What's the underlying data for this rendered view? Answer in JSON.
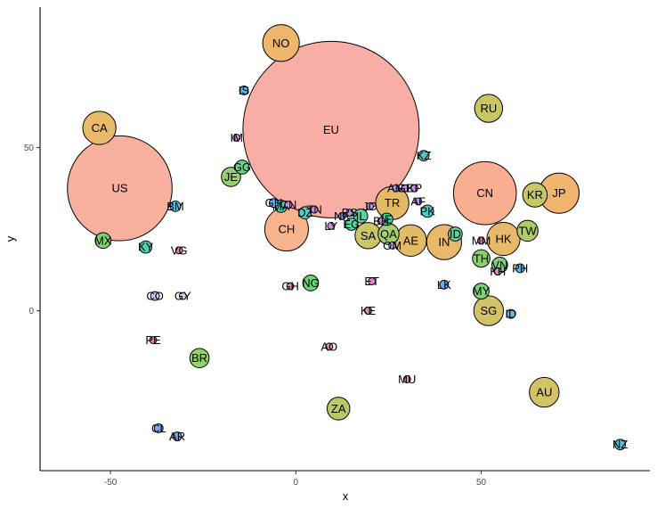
{
  "chart_data": {
    "type": "scatter",
    "title": "",
    "xlabel": "x",
    "ylabel": "y",
    "xlim": [
      -69.0,
      95.5
    ],
    "ylim": [
      -49.0,
      93.0
    ],
    "xticks": [
      -50,
      0,
      50
    ],
    "yticks": [
      0,
      50
    ],
    "grid": false,
    "legend": "none",
    "points": [
      {
        "label": "EU",
        "x": 9.5,
        "y": 55.5,
        "size": 100,
        "color": "#f9aea5"
      },
      {
        "label": "US",
        "x": -47.5,
        "y": 37.5,
        "size": 59,
        "color": "#f8b09f"
      },
      {
        "label": "CN",
        "x": 51.0,
        "y": 36.0,
        "size": 35,
        "color": "#f8ae8f"
      },
      {
        "label": "JP",
        "x": 71.0,
        "y": 36.0,
        "size": 22,
        "color": "#f1b56f"
      },
      {
        "label": "CH",
        "x": -2.5,
        "y": 25.0,
        "size": 24,
        "color": "#f6b38c"
      },
      {
        "label": "NO",
        "x": -4.0,
        "y": 82.0,
        "size": 20,
        "color": "#efb66e"
      },
      {
        "label": "CA",
        "x": -53.0,
        "y": 56.0,
        "size": 18,
        "color": "#e8ba69"
      },
      {
        "label": "RU",
        "x": 52.0,
        "y": 62.0,
        "size": 15,
        "color": "#c9c665"
      },
      {
        "label": "TR",
        "x": 26.0,
        "y": 33.0,
        "size": 18,
        "color": "#e3bb68"
      },
      {
        "label": "AE",
        "x": 31.0,
        "y": 21.5,
        "size": 17,
        "color": "#e0bc68"
      },
      {
        "label": "IN",
        "x": 40.0,
        "y": 21.0,
        "size": 19,
        "color": "#e8b96b"
      },
      {
        "label": "HK",
        "x": 56.0,
        "y": 22.0,
        "size": 18,
        "color": "#e6ba6a"
      },
      {
        "label": "KR",
        "x": 64.5,
        "y": 35.5,
        "size": 13,
        "color": "#c6c766"
      },
      {
        "label": "TW",
        "x": 62.5,
        "y": 24.5,
        "size": 11,
        "color": "#aecd69"
      },
      {
        "label": "SA",
        "x": 19.5,
        "y": 23.0,
        "size": 14,
        "color": "#ccc566"
      },
      {
        "label": "QA",
        "x": 25.0,
        "y": 23.5,
        "size": 11,
        "color": "#a4cf6c"
      },
      {
        "label": "SG",
        "x": 52.0,
        "y": 0.0,
        "size": 16,
        "color": "#d4c266"
      },
      {
        "label": "AU",
        "x": 67.0,
        "y": -25.0,
        "size": 16,
        "color": "#d2c366"
      },
      {
        "label": "ZA",
        "x": 11.5,
        "y": -30.0,
        "size": 12,
        "color": "#b6cb66"
      },
      {
        "label": "BR",
        "x": -26.0,
        "y": -14.5,
        "size": 10,
        "color": "#92d26c"
      },
      {
        "label": "JE",
        "x": -17.5,
        "y": 41.0,
        "size": 10,
        "color": "#95d16c"
      },
      {
        "label": "MX",
        "x": -52.0,
        "y": 21.5,
        "size": 8,
        "color": "#7dd270"
      },
      {
        "label": "TH",
        "x": 50.0,
        "y": 16.0,
        "size": 9,
        "color": "#8dd16e"
      },
      {
        "label": "MY",
        "x": 50.0,
        "y": 6.0,
        "size": 8,
        "color": "#7dd474"
      },
      {
        "label": "VN",
        "x": 55.0,
        "y": 14.0,
        "size": 8,
        "color": "#73d47d"
      },
      {
        "label": "NG",
        "x": 4.0,
        "y": 8.5,
        "size": 8,
        "color": "#6dd47e"
      },
      {
        "label": "GG",
        "x": -14.5,
        "y": 44.0,
        "size": 7,
        "color": "#6ad589"
      },
      {
        "label": "ID",
        "x": 43.0,
        "y": 23.5,
        "size": 7,
        "color": "#58d396"
      },
      {
        "label": "IL",
        "x": 17.5,
        "y": 29.0,
        "size": 7,
        "color": "#5ad39c"
      },
      {
        "label": "EG",
        "x": 15.0,
        "y": 26.5,
        "size": 6,
        "color": "#56d3a1"
      },
      {
        "label": "IE",
        "x": 24.5,
        "y": 28.0,
        "size": 6,
        "color": "#55d4a6"
      },
      {
        "label": "KY",
        "x": -40.5,
        "y": 19.5,
        "size": 6,
        "color": "#4fd2b3"
      },
      {
        "label": "MA",
        "x": -4.0,
        "y": 32.0,
        "size": 6,
        "color": "#4fd0bc"
      },
      {
        "label": "DZ",
        "x": 2.5,
        "y": 30.0,
        "size": 6,
        "color": "#4fcec2"
      },
      {
        "label": "PK",
        "x": 35.5,
        "y": 30.5,
        "size": 6,
        "color": "#4dcdc8"
      },
      {
        "label": "KZ",
        "x": 34.5,
        "y": 47.5,
        "size": 5,
        "color": "#4ec9d3"
      },
      {
        "label": "NZ",
        "x": 87.5,
        "y": -41.0,
        "size": 5,
        "color": "#4fc6dd"
      },
      {
        "label": "BM",
        "x": -32.5,
        "y": 32.0,
        "size": 5,
        "color": "#53c3e2"
      },
      {
        "label": "PH",
        "x": 60.5,
        "y": 13.0,
        "size": 4,
        "color": "#5abee8"
      },
      {
        "label": "IS",
        "x": -14.0,
        "y": 67.5,
        "size": 4,
        "color": "#5eb9ec"
      },
      {
        "label": "GH",
        "x": -6.0,
        "y": 33.0,
        "size": 4,
        "color": "#65b5ee"
      },
      {
        "label": "LK",
        "x": 40.0,
        "y": 8.0,
        "size": 4,
        "color": "#6bb1f0"
      },
      {
        "label": "CL",
        "x": -37.0,
        "y": -36.0,
        "size": 4,
        "color": "#70aef1"
      },
      {
        "label": "AR",
        "x": -32.0,
        "y": -38.5,
        "size": 4,
        "color": "#76aaf2"
      },
      {
        "label": "ID",
        "x": 58.0,
        "y": -1.0,
        "size": 4,
        "color": "#5ebdea"
      },
      {
        "label": "NR",
        "x": 12.5,
        "y": 29.0,
        "size": 3,
        "color": "#8ea2f3"
      },
      {
        "label": "RS",
        "x": 14.5,
        "y": 30.0,
        "size": 3,
        "color": "#9a9ef3"
      },
      {
        "label": "JO",
        "x": 20.0,
        "y": 32.0,
        "size": 3,
        "color": "#a59bf2"
      },
      {
        "label": "AF",
        "x": 33.0,
        "y": 33.5,
        "size": 3,
        "color": "#b297f0"
      },
      {
        "label": "AM",
        "x": 27.0,
        "y": 37.5,
        "size": 3,
        "color": "#b995ee"
      },
      {
        "label": "GE",
        "x": 29.5,
        "y": 37.5,
        "size": 3,
        "color": "#c192eb"
      },
      {
        "label": "KP",
        "x": 32.0,
        "y": 37.5,
        "size": 3,
        "color": "#c68fe8"
      },
      {
        "label": "CN",
        "x": -2.0,
        "y": 32.5,
        "size": 3,
        "color": "#cc8ee5"
      },
      {
        "label": "TN",
        "x": 5.0,
        "y": 31.0,
        "size": 3,
        "color": "#d18ce1"
      },
      {
        "label": "LY",
        "x": 9.5,
        "y": 26.0,
        "size": 3,
        "color": "#d68ade"
      },
      {
        "label": "IM",
        "x": -16.0,
        "y": 53.0,
        "size": 3,
        "color": "#db89da"
      },
      {
        "label": "BH",
        "x": 23.0,
        "y": 27.5,
        "size": 3,
        "color": "#df88d6"
      },
      {
        "label": "MM",
        "x": 50.0,
        "y": 21.5,
        "size": 3,
        "color": "#e287d2"
      },
      {
        "label": "KH",
        "x": 54.5,
        "y": 12.0,
        "size": 3,
        "color": "#e686cc"
      },
      {
        "label": "ET",
        "x": 20.5,
        "y": 9.0,
        "size": 3,
        "color": "#e886c6"
      },
      {
        "label": "KE",
        "x": 19.5,
        "y": 0.0,
        "size": 3,
        "color": "#ea86c0"
      },
      {
        "label": "AO",
        "x": 9.0,
        "y": -11.0,
        "size": 3,
        "color": "#eb86bb"
      },
      {
        "label": "MU",
        "x": 30.0,
        "y": -21.0,
        "size": 3,
        "color": "#ec86b6"
      },
      {
        "label": "PE",
        "x": -38.5,
        "y": -9.0,
        "size": 3,
        "color": "#ec87b0"
      },
      {
        "label": "VG",
        "x": -31.5,
        "y": 18.5,
        "size": 3,
        "color": "#ed87ab"
      },
      {
        "label": "GH",
        "x": -1.5,
        "y": 7.5,
        "size": 3,
        "color": "#ed88a5"
      },
      {
        "label": "OM",
        "x": 26.0,
        "y": 20.0,
        "size": 3,
        "color": "#bfb8f5"
      },
      {
        "label": "CO",
        "x": -38.0,
        "y": 4.5,
        "size": 4,
        "color": "#c9c3f6"
      },
      {
        "label": "GY",
        "x": -30.5,
        "y": 4.5,
        "size": 3,
        "color": "#ccc8f7"
      }
    ]
  }
}
